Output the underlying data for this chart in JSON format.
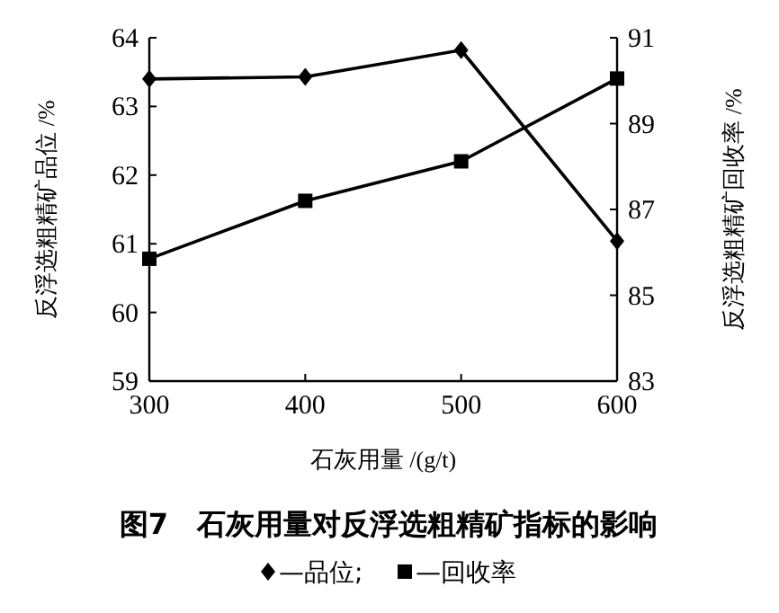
{
  "chart_data": {
    "type": "line",
    "title": "图7　石灰用量对反浮选粗精矿指标的影响",
    "xlabel": "石灰用量 /(g/t)",
    "ylabel": "反浮选粗精矿品位 /%",
    "y2label": "反浮选粗精矿回收率 /%",
    "x": [
      300,
      400,
      500,
      600
    ],
    "xlim": [
      300,
      600
    ],
    "xticks": [
      300,
      400,
      500,
      600
    ],
    "ylim": [
      59,
      64
    ],
    "yticks": [
      59,
      60,
      61,
      62,
      63,
      64
    ],
    "y2lim": [
      83,
      91
    ],
    "y2ticks": [
      83,
      85,
      87,
      89,
      91
    ],
    "series": [
      {
        "name": "—品位;",
        "color": "#000000",
        "marker": "diamond",
        "values": [
          63.4,
          63.43,
          63.82,
          61.04
        ]
      },
      {
        "name": "—回收率",
        "color": "#000000",
        "marker": "square",
        "axis": "y2",
        "values": [
          85.85,
          87.2,
          88.12,
          90.05
        ]
      }
    ],
    "legend": "bottom",
    "grid": false,
    "line_style": "solid"
  }
}
